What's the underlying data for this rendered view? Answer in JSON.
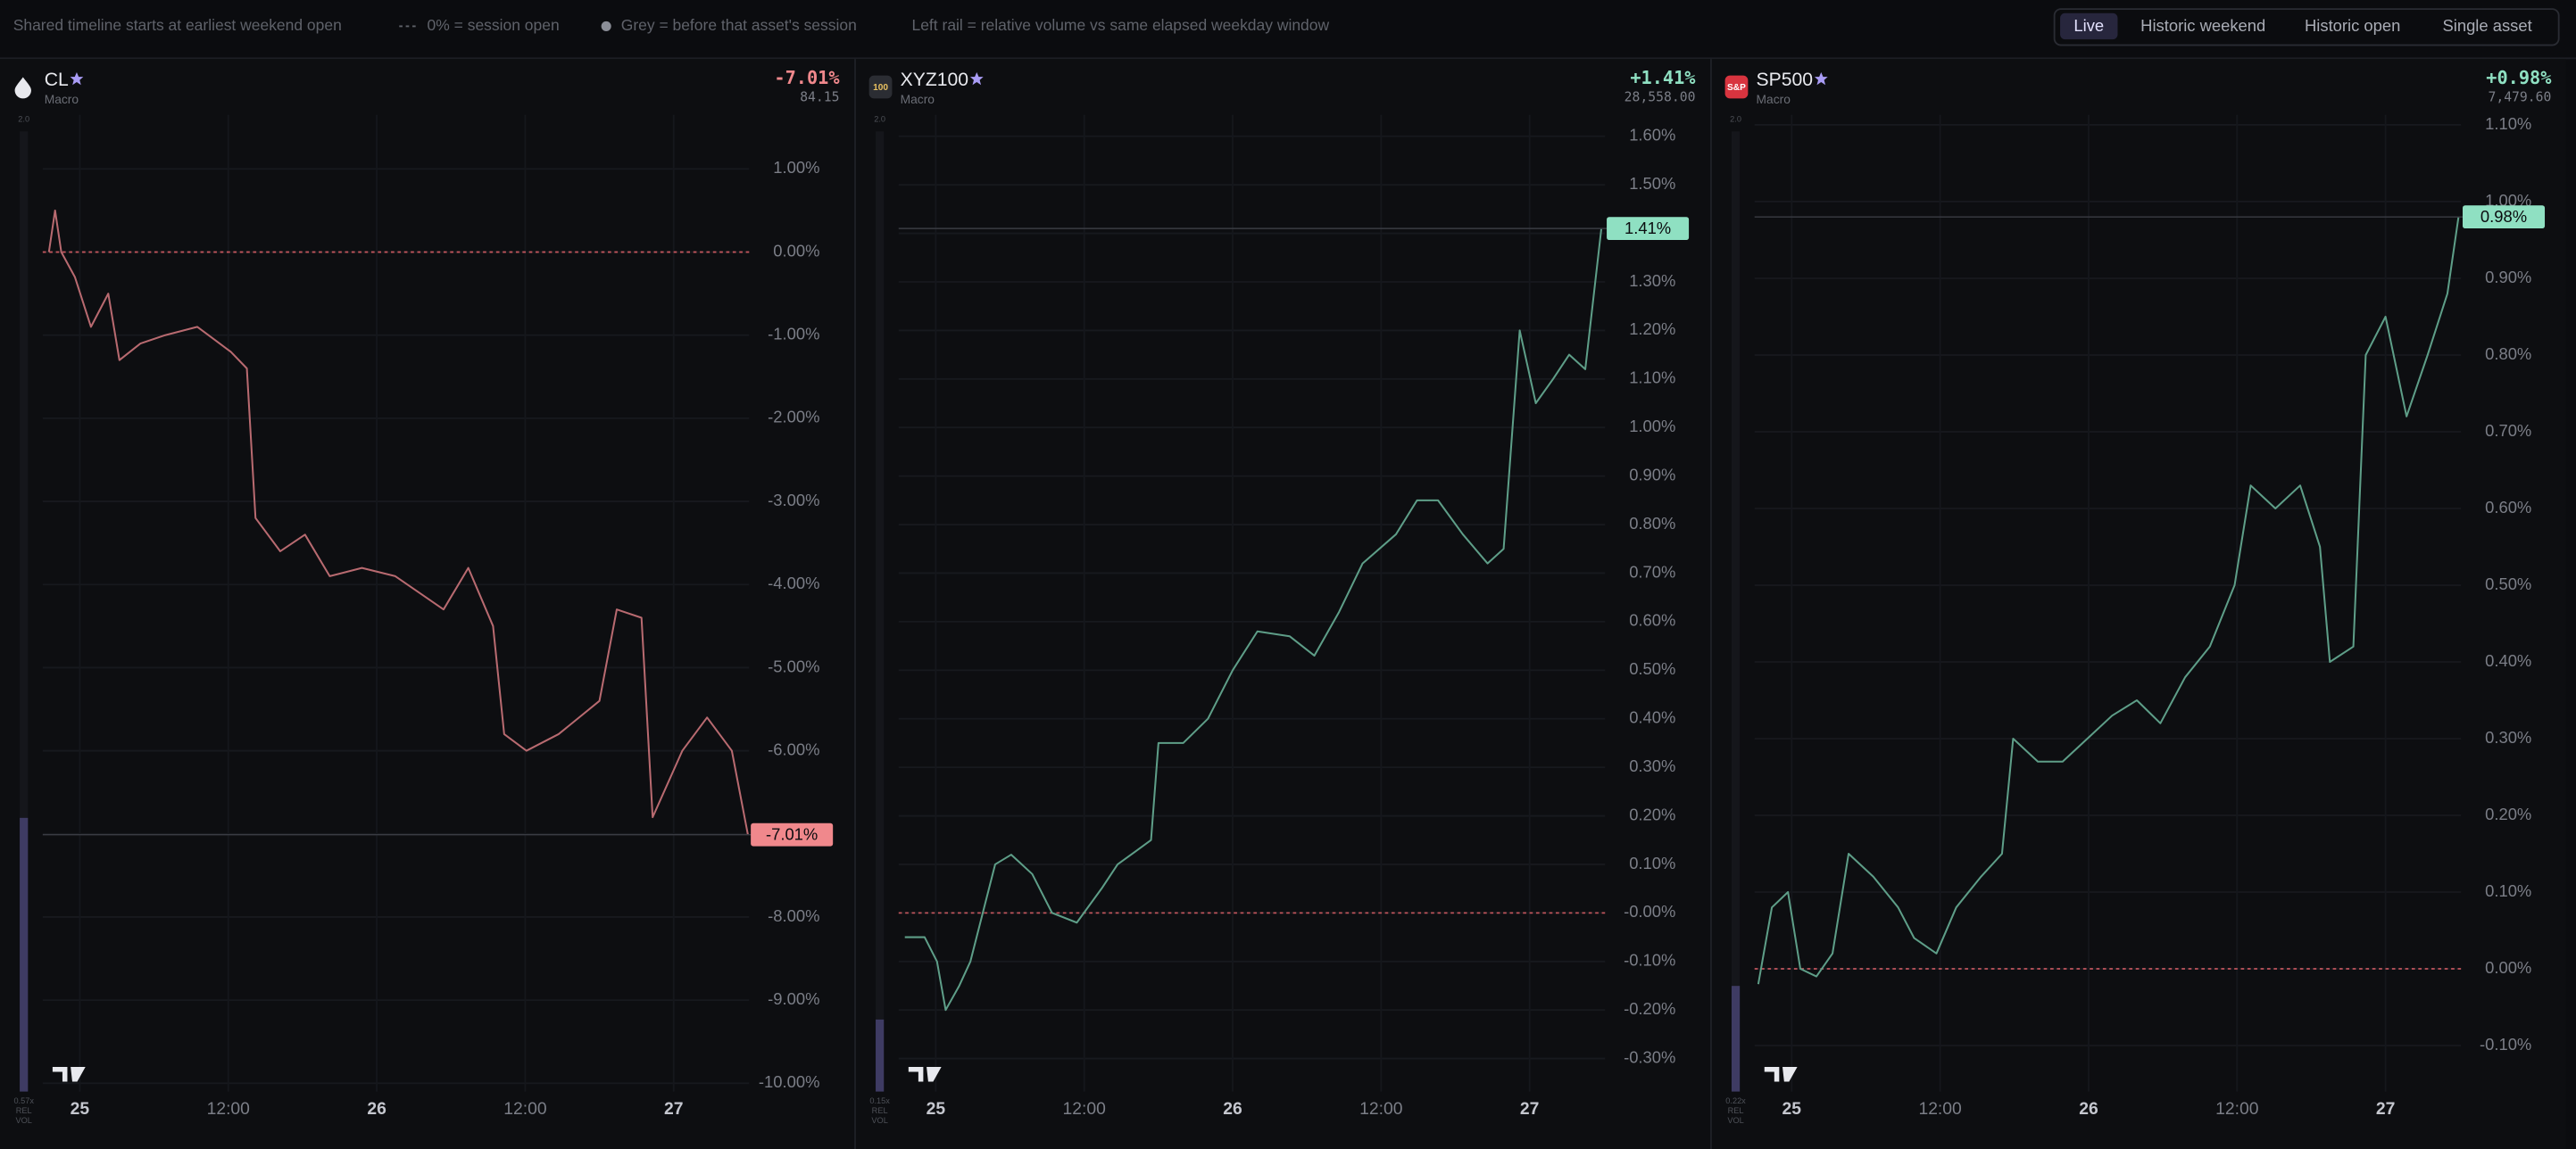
{
  "toolbar": {
    "notes": [
      "Shared timeline starts at earliest weekend open",
      "0% = session open",
      "Grey = before that asset's session",
      "Left rail = relative volume vs same elapsed weekday window"
    ],
    "tabs": [
      "Live",
      "Historic weekend",
      "Historic open",
      "Single asset"
    ],
    "active_tab": "Live"
  },
  "chart_data": [
    {
      "type": "line",
      "title": "CL",
      "subtitle": "Macro",
      "icon": "",
      "change": "-7.01%",
      "price": "84.15",
      "last_label": "-7.01%",
      "color": "#b86a70",
      "accent": "#f0888c",
      "rel_vol": {
        "value": 0.57,
        "label": "0.57x"
      },
      "rel_vol_max": {
        "value": 2,
        "label": "2.0"
      },
      "rel_vol_caption": [
        "REL",
        "VOL"
      ],
      "x": [
        -2.5,
        -2.0,
        -1.5,
        -0.4,
        0.9,
        2.3,
        3.2,
        4.9,
        6.9,
        9.5,
        12.2,
        13.5,
        14.2,
        16.2,
        18.2,
        20.2,
        22.8,
        25.5,
        29.4,
        31.4,
        33.4,
        34.3,
        36.1,
        38.7,
        42.0,
        43.4,
        45.4,
        46.3,
        48.7,
        50.7,
        52.7,
        54.0
      ],
      "values": [
        0.0,
        0.5,
        0.0,
        -0.3,
        -0.9,
        -0.5,
        -1.3,
        -1.1,
        -1.0,
        -0.9,
        -1.2,
        -1.4,
        -3.2,
        -3.6,
        -3.4,
        -3.9,
        -3.8,
        -3.9,
        -4.3,
        -3.8,
        -4.5,
        -5.8,
        -6.0,
        -5.8,
        -5.4,
        -4.3,
        -4.4,
        -6.8,
        -6.0,
        -5.6,
        -6.0,
        -7.01
      ],
      "xlim": [
        -3,
        54.1
      ],
      "ylim": [
        -10.1,
        1.65
      ],
      "xticks": [
        {
          "value": 0,
          "label": "25"
        },
        {
          "value": 12,
          "label": "12:00"
        },
        {
          "value": 24,
          "label": "26"
        },
        {
          "value": 36,
          "label": "12:00"
        },
        {
          "value": 48,
          "label": "27"
        }
      ],
      "yticks": [
        {
          "value": 1,
          "label": "1.00%"
        },
        {
          "value": 0,
          "label": "0.00%"
        },
        {
          "value": -1,
          "label": "-1.00%"
        },
        {
          "value": -2,
          "label": "-2.00%"
        },
        {
          "value": -3,
          "label": "-3.00%"
        },
        {
          "value": -4,
          "label": "-4.00%"
        },
        {
          "value": -5,
          "label": "-5.00%"
        },
        {
          "value": -6,
          "label": "-6.00%"
        },
        {
          "value": -7,
          "label": "-7.00%"
        },
        {
          "value": -8,
          "label": "-8.00%"
        },
        {
          "value": -9,
          "label": "-9.00%"
        },
        {
          "value": -10,
          "label": "-10.00%"
        }
      ],
      "grid": true
    },
    {
      "type": "line",
      "title": "XYZ100",
      "subtitle": "Macro",
      "icon": "100",
      "change": "+1.41%",
      "price": "28,558.00",
      "last_label": "1.41%",
      "color": "#5e9e88",
      "accent": "#8fe0c2",
      "rel_vol": {
        "value": 0.15,
        "label": "0.15x"
      },
      "rel_vol_max": {
        "value": 2,
        "label": "2.0"
      },
      "rel_vol_caption": [
        "REL",
        "VOL"
      ],
      "x": [
        -2.5,
        -1.9,
        -0.9,
        0.1,
        0.8,
        1.9,
        2.8,
        3.8,
        4.8,
        6.1,
        7.8,
        9.4,
        11.4,
        13.4,
        14.7,
        17.4,
        18.0,
        20.0,
        22.0,
        24.0,
        26.0,
        28.6,
        30.6,
        32.6,
        34.5,
        37.2,
        38.9,
        40.6,
        42.6,
        44.6,
        45.9,
        47.2,
        48.5,
        49.9,
        51.2,
        52.5,
        53.8
      ],
      "values": [
        -0.05,
        -0.05,
        -0.05,
        -0.1,
        -0.2,
        -0.15,
        -0.1,
        0.0,
        0.1,
        0.12,
        0.08,
        0.0,
        -0.02,
        0.05,
        0.1,
        0.15,
        0.35,
        0.35,
        0.4,
        0.5,
        0.58,
        0.57,
        0.53,
        0.62,
        0.72,
        0.78,
        0.85,
        0.85,
        0.78,
        0.72,
        0.75,
        1.2,
        1.05,
        1.1,
        1.15,
        1.12,
        1.41
      ],
      "xlim": [
        -3,
        54.1
      ],
      "ylim": [
        -0.368,
        1.644
      ],
      "xticks": [
        {
          "value": 0,
          "label": "25"
        },
        {
          "value": 12,
          "label": "12:00"
        },
        {
          "value": 24,
          "label": "26"
        },
        {
          "value": 36,
          "label": "12:00"
        },
        {
          "value": 48,
          "label": "27"
        }
      ],
      "yticks": [
        {
          "value": 1.6,
          "label": "1.60%"
        },
        {
          "value": 1.5,
          "label": "1.50%"
        },
        {
          "value": 1.4,
          "label": "1.40%"
        },
        {
          "value": 1.3,
          "label": "1.30%"
        },
        {
          "value": 1.2,
          "label": "1.20%"
        },
        {
          "value": 1.1,
          "label": "1.10%"
        },
        {
          "value": 1.0,
          "label": "1.00%"
        },
        {
          "value": 0.9,
          "label": "0.90%"
        },
        {
          "value": 0.8,
          "label": "0.80%"
        },
        {
          "value": 0.7,
          "label": "0.70%"
        },
        {
          "value": 0.6,
          "label": "0.60%"
        },
        {
          "value": 0.5,
          "label": "0.50%"
        },
        {
          "value": 0.4,
          "label": "0.40%"
        },
        {
          "value": 0.3,
          "label": "0.30%"
        },
        {
          "value": 0.2,
          "label": "0.20%"
        },
        {
          "value": 0.1,
          "label": "0.10%"
        },
        {
          "value": 0,
          "label": "-0.00%"
        },
        {
          "value": -0.1,
          "label": "-0.10%"
        },
        {
          "value": -0.2,
          "label": "-0.20%"
        },
        {
          "value": -0.3,
          "label": "-0.30%"
        }
      ],
      "grid": true
    },
    {
      "type": "line",
      "title": "SP500",
      "subtitle": "Macro",
      "icon": "S&P",
      "change": "+0.98%",
      "price": "7,479.60",
      "last_label": "0.98%",
      "color": "#5e9e88",
      "accent": "#8fe0c2",
      "rel_vol": {
        "value": 0.22,
        "label": "0.22x"
      },
      "rel_vol_max": {
        "value": 2,
        "label": "2.0"
      },
      "rel_vol_caption": [
        "REL",
        "VOL"
      ],
      "x": [
        -2.7,
        -1.6,
        -0.3,
        0.7,
        2.0,
        3.3,
        4.6,
        6.6,
        8.6,
        9.9,
        11.7,
        13.3,
        15.3,
        17.0,
        17.9,
        19.9,
        21.9,
        23.9,
        25.9,
        27.9,
        29.8,
        31.8,
        33.8,
        35.8,
        37.1,
        39.1,
        41.1,
        42.7,
        43.5,
        45.4,
        46.4,
        48.0,
        49.7,
        51.4,
        53.0,
        53.9
      ],
      "values": [
        -0.02,
        0.08,
        0.1,
        0.0,
        -0.01,
        0.02,
        0.15,
        0.12,
        0.08,
        0.04,
        0.02,
        0.08,
        0.12,
        0.15,
        0.3,
        0.27,
        0.27,
        0.3,
        0.33,
        0.35,
        0.32,
        0.38,
        0.42,
        0.5,
        0.63,
        0.6,
        0.63,
        0.55,
        0.4,
        0.42,
        0.8,
        0.85,
        0.72,
        0.8,
        0.88,
        0.98
      ],
      "xlim": [
        -3,
        54.1
      ],
      "ylim": [
        -0.16,
        1.113
      ],
      "xticks": [
        {
          "value": 0,
          "label": "25"
        },
        {
          "value": 12,
          "label": "12:00"
        },
        {
          "value": 24,
          "label": "26"
        },
        {
          "value": 36,
          "label": "12:00"
        },
        {
          "value": 48,
          "label": "27"
        }
      ],
      "yticks": [
        {
          "value": 1.1,
          "label": "1.10%"
        },
        {
          "value": 1.0,
          "label": "1.00%"
        },
        {
          "value": 0.9,
          "label": "0.90%"
        },
        {
          "value": 0.8,
          "label": "0.80%"
        },
        {
          "value": 0.7,
          "label": "0.70%"
        },
        {
          "value": 0.6,
          "label": "0.60%"
        },
        {
          "value": 0.5,
          "label": "0.50%"
        },
        {
          "value": 0.4,
          "label": "0.40%"
        },
        {
          "value": 0.3,
          "label": "0.30%"
        },
        {
          "value": 0.2,
          "label": "0.20%"
        },
        {
          "value": 0.1,
          "label": "0.10%"
        },
        {
          "value": 0,
          "label": "0.00%"
        },
        {
          "value": -0.1,
          "label": "-0.10%"
        }
      ],
      "grid": true
    }
  ]
}
